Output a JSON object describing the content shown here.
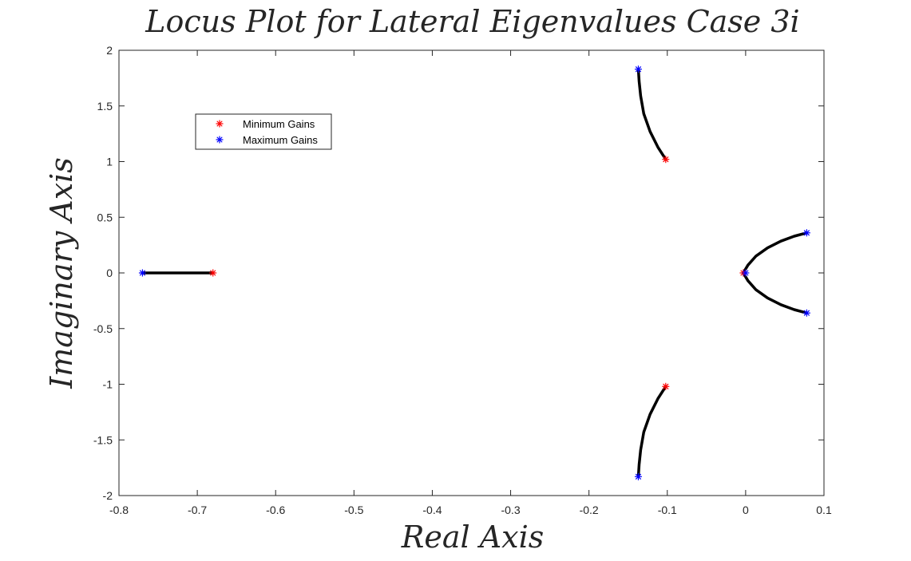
{
  "chart_data": {
    "type": "scatter",
    "title": "Locus Plot for Lateral Eigenvalues Case 3i",
    "xlabel": "Real Axis",
    "ylabel": "Imaginary Axis",
    "xlim": [
      -0.8,
      0.1
    ],
    "ylim": [
      -2,
      2
    ],
    "xticks": [
      -0.8,
      -0.7,
      -0.6,
      -0.5,
      -0.4,
      -0.3,
      -0.2,
      -0.1,
      0,
      0.1
    ],
    "xtick_labels": [
      "-0.8",
      "-0.7",
      "-0.6",
      "-0.5",
      "-0.4",
      "-0.3",
      "-0.2",
      "-0.1",
      "0",
      "0.1"
    ],
    "yticks": [
      -2,
      -1.5,
      -1,
      -0.5,
      0,
      0.5,
      1,
      1.5,
      2
    ],
    "ytick_labels": [
      "-2",
      "-1.5",
      "-1",
      "-0.5",
      "0",
      "0.5",
      "1",
      "1.5",
      "2"
    ],
    "grid": false,
    "legend_position": "top-left",
    "colors": {
      "locus": "#000000",
      "minimum": "#ff0000",
      "maximum": "#0000ff",
      "axes": "#262626"
    },
    "series": [
      {
        "name": "Minimum Gains",
        "marker": "*",
        "color": "#ff0000",
        "x": [
          -0.68,
          -0.102,
          -0.102,
          -0.003
        ],
        "y": [
          0,
          1.02,
          -1.02,
          0
        ]
      },
      {
        "name": "Maximum Gains",
        "marker": "*",
        "color": "#0000ff",
        "x": [
          -0.77,
          -0.137,
          -0.137,
          0.078,
          0.078,
          0
        ],
        "y": [
          0,
          1.83,
          -1.83,
          0.36,
          -0.36,
          0
        ]
      }
    ],
    "loci": [
      {
        "x": [
          -0.68,
          -0.7,
          -0.72,
          -0.74,
          -0.76,
          -0.77
        ],
        "y": [
          0,
          0,
          0,
          0,
          0,
          0
        ]
      },
      {
        "x": [
          -0.102,
          -0.112,
          -0.122,
          -0.13,
          -0.134,
          -0.136,
          -0.137
        ],
        "y": [
          1.02,
          1.13,
          1.27,
          1.43,
          1.59,
          1.72,
          1.83
        ]
      },
      {
        "x": [
          -0.102,
          -0.112,
          -0.122,
          -0.13,
          -0.134,
          -0.136,
          -0.137
        ],
        "y": [
          -1.02,
          -1.13,
          -1.27,
          -1.43,
          -1.59,
          -1.72,
          -1.83
        ]
      },
      {
        "x": [
          -0.003,
          0.003,
          0.013,
          0.028,
          0.045,
          0.062,
          0.078
        ],
        "y": [
          0,
          0.07,
          0.15,
          0.225,
          0.285,
          0.33,
          0.36
        ]
      },
      {
        "x": [
          -0.003,
          0.003,
          0.013,
          0.028,
          0.045,
          0.062,
          0.078
        ],
        "y": [
          0,
          -0.07,
          -0.15,
          -0.225,
          -0.285,
          -0.33,
          -0.36
        ]
      }
    ]
  }
}
